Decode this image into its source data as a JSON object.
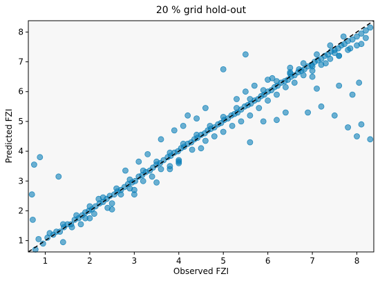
{
  "chart_data": {
    "type": "scatter",
    "title": "20 % grid hold-out",
    "xlabel": "Observed FZI",
    "ylabel": "Predicted FZI",
    "xlim": [
      0.62,
      8.38
    ],
    "ylim": [
      0.62,
      8.38
    ],
    "xticks": [
      1,
      2,
      3,
      4,
      5,
      6,
      7,
      8
    ],
    "yticks": [
      1,
      2,
      3,
      4,
      5,
      6,
      7,
      8
    ],
    "grid": false,
    "background": "#f7f7f7",
    "point_color": "#0c7fb8",
    "reference_line": {
      "style": "dashed",
      "color": "#000000",
      "from": [
        0.62,
        0.62
      ],
      "to": [
        8.38,
        8.38
      ]
    },
    "series": [
      {
        "x": [
          0.78,
          0.95,
          1.05,
          1.18,
          1.25,
          1.33,
          1.42,
          1.5,
          1.58,
          1.66,
          1.75,
          1.83,
          1.9,
          1.98,
          2.05,
          2.13,
          2.22,
          2.3,
          2.38,
          2.45,
          2.55,
          2.62,
          2.7,
          2.78,
          2.86,
          2.95,
          3.02,
          3.1,
          3.18,
          3.26,
          3.35,
          3.42,
          3.5,
          3.58,
          3.66,
          3.75,
          3.82,
          3.9,
          3.98,
          4.05,
          4.12,
          4.2,
          4.28,
          4.35,
          4.42,
          4.5,
          4.58,
          4.65,
          4.72,
          4.8,
          4.88,
          4.95,
          5.02,
          5.1,
          5.18,
          5.25,
          5.32,
          5.4,
          5.48,
          5.55,
          5.62,
          5.7,
          5.78,
          5.85,
          5.92,
          6.0,
          6.08,
          6.15,
          6.22,
          6.3,
          6.38,
          6.45,
          6.52,
          6.6,
          6.68,
          6.75,
          6.82,
          6.9,
          6.98,
          7.05,
          7.12,
          7.2,
          7.28,
          7.35,
          7.42,
          7.5,
          7.58,
          7.65,
          7.72,
          7.8,
          7.9,
          8.0,
          8.1,
          8.2,
          8.3,
          1.1,
          1.4,
          1.7,
          2.0,
          2.3,
          2.6,
          2.9,
          3.2,
          3.5,
          3.8,
          4.1,
          4.4,
          4.7,
          5.0,
          5.3,
          5.6,
          5.9,
          6.2,
          6.5,
          6.8,
          7.1,
          7.4,
          7.7,
          0.7,
          0.75,
          0.88,
          1.3,
          0.72,
          0.85,
          1.4,
          1.6,
          1.9,
          2.1,
          2.2,
          2.5,
          2.7,
          2.9,
          3.0,
          3.2,
          3.4,
          3.6,
          3.8,
          4.0,
          4.3,
          4.6,
          4.8,
          5.0,
          5.2,
          5.4,
          5.6,
          5.8,
          6.0,
          6.2,
          6.4,
          6.6,
          6.8,
          7.0,
          7.2,
          7.4,
          7.6,
          7.8,
          8.0,
          8.2,
          4.2,
          4.6,
          5.3,
          5.5,
          5.7,
          6.1,
          6.5,
          6.7,
          7.0,
          7.3,
          7.6,
          7.85,
          8.1,
          3.6,
          3.9,
          4.1,
          4.4,
          2.8,
          3.1,
          3.3,
          7.2,
          7.5,
          7.8,
          8.0,
          8.1,
          8.3,
          6.9,
          7.1,
          7.6,
          7.9,
          8.05,
          6.4,
          6.2,
          5.6,
          5.9,
          4.0,
          3.8,
          2.4,
          2.0,
          1.8,
          5.0,
          5.5,
          6.0,
          6.5,
          7.0,
          7.5,
          4.5,
          4.0,
          3.5,
          3.0,
          2.5
        ],
        "y": [
          0.7,
          0.9,
          1.1,
          1.2,
          1.3,
          1.3,
          1.45,
          1.55,
          1.55,
          1.7,
          1.75,
          1.85,
          1.95,
          2.0,
          2.05,
          2.15,
          2.25,
          2.3,
          2.4,
          2.5,
          2.55,
          2.65,
          2.7,
          2.8,
          2.9,
          2.95,
          3.0,
          3.15,
          3.2,
          3.3,
          3.35,
          3.45,
          3.55,
          3.6,
          3.7,
          3.8,
          3.85,
          3.95,
          4.0,
          4.1,
          4.15,
          4.25,
          4.3,
          4.4,
          4.45,
          4.55,
          4.6,
          4.7,
          4.75,
          4.8,
          4.9,
          4.95,
          5.05,
          5.1,
          5.2,
          5.25,
          5.3,
          5.4,
          5.5,
          5.55,
          5.6,
          5.7,
          5.75,
          5.85,
          5.9,
          6.0,
          6.05,
          6.15,
          6.2,
          6.3,
          6.35,
          6.4,
          6.5,
          6.55,
          6.65,
          6.7,
          6.75,
          6.85,
          6.9,
          7.0,
          7.05,
          7.1,
          7.2,
          7.25,
          7.35,
          7.4,
          7.45,
          7.55,
          7.6,
          7.7,
          7.75,
          7.85,
          7.95,
          8.05,
          8.15,
          1.25,
          1.55,
          1.85,
          2.15,
          2.45,
          2.75,
          3.05,
          3.35,
          3.65,
          3.95,
          4.25,
          4.55,
          4.85,
          5.15,
          5.45,
          5.75,
          6.05,
          6.35,
          6.65,
          6.95,
          7.25,
          7.55,
          7.85,
          2.55,
          3.55,
          3.8,
          3.15,
          1.7,
          1.05,
          0.95,
          1.45,
          1.75,
          1.9,
          2.4,
          2.25,
          2.55,
          2.75,
          2.7,
          3.0,
          3.15,
          3.4,
          3.5,
          3.65,
          4.05,
          4.35,
          4.5,
          4.65,
          4.85,
          5.0,
          5.2,
          5.45,
          5.7,
          5.9,
          6.15,
          6.3,
          6.55,
          6.7,
          6.9,
          7.1,
          7.2,
          7.4,
          7.55,
          7.8,
          5.2,
          5.45,
          5.75,
          6.0,
          6.2,
          6.45,
          6.6,
          6.75,
          6.85,
          6.95,
          7.2,
          7.45,
          7.6,
          4.4,
          4.7,
          4.85,
          5.1,
          3.35,
          3.65,
          3.9,
          5.5,
          5.2,
          4.8,
          4.5,
          4.9,
          4.4,
          5.3,
          6.1,
          6.2,
          5.9,
          6.3,
          5.3,
          5.05,
          4.3,
          5.0,
          3.7,
          3.4,
          2.1,
          1.75,
          1.55,
          6.75,
          7.25,
          6.4,
          6.8,
          6.5,
          7.3,
          4.1,
          3.6,
          2.95,
          2.55,
          2.05
        ]
      }
    ]
  }
}
